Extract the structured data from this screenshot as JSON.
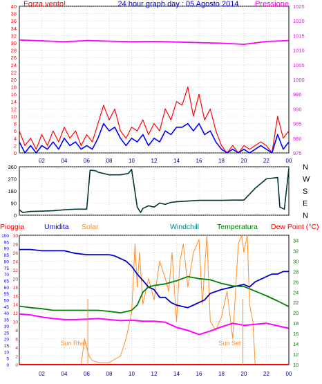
{
  "colors": {
    "wind": "#ff0000",
    "wind_avg": "#0000ff",
    "pressure": "#ff00ff",
    "direction": "#003333",
    "humidity": "#0000cc",
    "temperature": "#008000",
    "dewpoint": "#ff00ff",
    "solar": "#ff8c2a",
    "rain": "#ff0000",
    "axis_left_red": "#ff0000",
    "axis_pressure": "#ff00ff",
    "axis_temp": "#008000",
    "grid": "#c0c0c0",
    "frame": "#000000"
  },
  "chart_data": [
    {
      "type": "line",
      "title": "24 hour graph day : 05 Agosto 2014",
      "left_label": "Forza vento!",
      "right_label": "Pressione",
      "x_ticks": [
        "02",
        "04",
        "06",
        "08",
        "10",
        "12",
        "14",
        "16",
        "18",
        "20",
        "22",
        "00"
      ],
      "y_left": {
        "min": 0,
        "max": 40,
        "ticks": [
          0,
          2,
          4,
          6,
          8,
          10,
          12,
          14,
          16,
          18,
          20,
          22,
          24,
          26,
          28,
          30,
          32,
          34,
          36,
          38,
          40
        ]
      },
      "y_right": {
        "min": 975,
        "max": 1025,
        "ticks": [
          975,
          980,
          985,
          990,
          995,
          1000,
          1005,
          1010,
          1015,
          1020,
          1025
        ]
      },
      "series": [
        {
          "name": "",
          "role": "wind_gust",
          "x": [
            0,
            0.5,
            1,
            1.5,
            2,
            2.5,
            3,
            3.5,
            4,
            4.5,
            5,
            5.5,
            6,
            6.5,
            7,
            7.5,
            8,
            8.5,
            9,
            9.5,
            10,
            10.5,
            11,
            11.5,
            12,
            12.5,
            13,
            13.5,
            14,
            14.5,
            15,
            15.5,
            16,
            16.5,
            17,
            17.5,
            18,
            18.5,
            19,
            19.5,
            20,
            20.5,
            21,
            21.5,
            22,
            22.5,
            23,
            23.5,
            24
          ],
          "y": [
            6,
            2,
            4,
            1,
            5,
            2,
            6,
            3,
            7,
            4,
            6,
            2,
            5,
            3,
            8,
            13,
            9,
            12,
            6,
            4,
            7,
            6,
            9,
            5,
            8,
            6,
            12,
            9,
            14,
            13,
            18,
            10,
            16,
            9,
            12,
            6,
            2,
            0,
            2,
            0,
            2,
            1,
            2,
            3,
            2,
            0,
            10,
            4,
            6
          ]
        },
        {
          "name": "",
          "role": "wind_avg",
          "x": [
            0,
            0.5,
            1,
            1.5,
            2,
            2.5,
            3,
            3.5,
            4,
            4.5,
            5,
            5.5,
            6,
            6.5,
            7,
            7.5,
            8,
            8.5,
            9,
            9.5,
            10,
            10.5,
            11,
            11.5,
            12,
            12.5,
            13,
            13.5,
            14,
            14.5,
            15,
            15.5,
            16,
            16.5,
            17,
            17.5,
            18,
            18.5,
            19,
            19.5,
            20,
            20.5,
            21,
            21.5,
            22,
            22.5,
            23,
            23.5,
            24
          ],
          "y": [
            3,
            0,
            2,
            0,
            2,
            1,
            3,
            1,
            4,
            2,
            3,
            1,
            2,
            1,
            4,
            8,
            6,
            7,
            4,
            2,
            4,
            3,
            5,
            2,
            4,
            3,
            6,
            5,
            7,
            7,
            8,
            6,
            8,
            5,
            6,
            3,
            1,
            0,
            1,
            0,
            1,
            0,
            1,
            2,
            1,
            0,
            5,
            1,
            3
          ]
        },
        {
          "name": "",
          "role": "pressure",
          "x": [
            0,
            2,
            4,
            6,
            8,
            10,
            12,
            14,
            16,
            18,
            20,
            22,
            24
          ],
          "y": [
            1013.5,
            1013.2,
            1012.9,
            1013.3,
            1013.1,
            1012.9,
            1013.0,
            1012.8,
            1012.6,
            1012.4,
            1012.0,
            1013.0,
            1013.3
          ]
        }
      ]
    },
    {
      "type": "line",
      "title": "",
      "y_ticks": [
        0,
        90,
        180,
        270,
        360
      ],
      "compass_labels": [
        "N",
        "W",
        "S",
        "E",
        "N"
      ],
      "series": [
        {
          "name": "",
          "role": "wind_direction",
          "x": [
            0,
            0.3,
            1,
            2,
            3,
            4,
            5,
            6,
            6.3,
            6.8,
            7,
            8,
            9,
            9.7,
            10,
            10.5,
            10.8,
            11,
            11.5,
            12,
            12.5,
            13,
            13.5,
            14,
            15,
            16,
            17,
            18,
            19,
            20,
            21,
            22,
            22.5,
            23,
            23.2,
            23.6,
            24
          ],
          "y": [
            40,
            20,
            28,
            30,
            33,
            40,
            45,
            45,
            335,
            330,
            320,
            300,
            300,
            310,
            340,
            60,
            20,
            50,
            70,
            60,
            90,
            80,
            95,
            100,
            105,
            110,
            110,
            110,
            112,
            112,
            200,
            270,
            275,
            280,
            60,
            45,
            345
          ]
        }
      ]
    },
    {
      "type": "line",
      "title": "",
      "labels_top": [
        "Pioggia",
        "Umidita",
        "Solar",
        "Windchill",
        "Temperatura",
        "Dew Point (°C)"
      ],
      "annotations": [
        "Sun Rise",
        "Sun Set"
      ],
      "y_rain": {
        "min": 0,
        "max": 30,
        "ticks": [
          0,
          2,
          4,
          6,
          8,
          10,
          12,
          14,
          16,
          18,
          20,
          22,
          24,
          26,
          28,
          30
        ]
      },
      "y_humidity": {
        "min": 0,
        "max": 100,
        "ticks": [
          0,
          5,
          10,
          15,
          20,
          25,
          30,
          35,
          40,
          45,
          50,
          55,
          60,
          65,
          70,
          75,
          80,
          85,
          90,
          95,
          100
        ]
      },
      "y_temp": {
        "min": 10,
        "max": 35,
        "ticks": [
          10,
          12,
          14,
          16,
          18,
          20,
          22,
          24,
          26,
          28,
          30,
          32,
          34
        ]
      },
      "x_ticks": [
        "02",
        "04",
        "06",
        "08",
        "10",
        "12",
        "14",
        "16",
        "18",
        "20",
        "22",
        "00"
      ],
      "series": [
        {
          "name": "",
          "role": "humidity",
          "x": [
            0,
            1,
            2,
            3,
            4,
            5,
            6,
            7,
            8,
            8.5,
            9,
            9.5,
            10,
            10.5,
            11,
            11.5,
            12,
            12.5,
            13,
            13.5,
            14,
            14.5,
            15,
            15.5,
            16,
            16.5,
            17,
            18,
            19,
            19.5,
            20,
            20.5,
            21,
            21.5,
            22,
            22.5,
            23,
            23.5,
            24
          ],
          "y": [
            89,
            89,
            88,
            88,
            88,
            86,
            85,
            85,
            85,
            84,
            82,
            80,
            76,
            70,
            65,
            60,
            58,
            52,
            52,
            48,
            46,
            45,
            44,
            46,
            48,
            50,
            55,
            58,
            60,
            61,
            62,
            60,
            64,
            66,
            68,
            70,
            70,
            72,
            72
          ]
        },
        {
          "name": "",
          "role": "temperature",
          "x": [
            0,
            1,
            2,
            3,
            4,
            5,
            6,
            7,
            8,
            9,
            10,
            10.5,
            11,
            11.5,
            12,
            13,
            14,
            15,
            16,
            17,
            18,
            19,
            20,
            21,
            22,
            23,
            24
          ],
          "y": [
            21.3,
            21.0,
            20.8,
            20.5,
            20.5,
            20.5,
            20.5,
            20.5,
            20.3,
            20.0,
            20.5,
            21.5,
            24.0,
            25.0,
            25.3,
            25.6,
            26.2,
            27.0,
            26.6,
            26.4,
            25.7,
            25.2,
            25.1,
            24.2,
            23.3,
            22.3,
            21.2
          ]
        },
        {
          "name": "",
          "role": "dewpoint",
          "x": [
            0,
            1,
            2,
            3,
            4,
            5,
            6,
            7,
            8,
            9,
            10,
            11,
            12,
            13,
            14,
            15,
            16,
            17,
            18,
            19,
            20,
            21,
            22,
            23,
            24
          ],
          "y": [
            19.8,
            19.6,
            19.2,
            18.9,
            18.7,
            18.7,
            18.8,
            18.9,
            18.7,
            18.5,
            18.6,
            18.4,
            18.4,
            18.2,
            17.2,
            16.6,
            15.8,
            16.5,
            17.3,
            18.0,
            17.6,
            17.8,
            18.0,
            17.5,
            17.0
          ]
        },
        {
          "name": "",
          "role": "solar",
          "x": [
            0,
            5.5,
            5.8,
            6.0,
            6.2,
            6.5,
            7,
            8,
            9,
            9.5,
            10,
            10.3,
            10.5,
            10.7,
            11,
            11.5,
            12,
            12.5,
            13,
            13.3,
            13.6,
            14,
            14.3,
            14.6,
            15,
            15.5,
            16,
            16.3,
            16.7,
            17,
            17.5,
            18,
            18.5,
            19,
            19.5,
            19.8,
            20,
            20.3,
            20.5,
            20.8,
            21,
            24
          ],
          "y": [
            0,
            0,
            6,
            4,
            2,
            1,
            0.5,
            0.5,
            2,
            6,
            12,
            28,
            18,
            26,
            14,
            20,
            15,
            24,
            20,
            17,
            26,
            10,
            24,
            28,
            18,
            26,
            29,
            14,
            30,
            10,
            8,
            11,
            17,
            6,
            28,
            30,
            26,
            30,
            14,
            10,
            0,
            0
          ]
        },
        {
          "name": "",
          "role": "rain",
          "x": [
            0,
            24
          ],
          "y": [
            0,
            0
          ]
        }
      ]
    }
  ]
}
